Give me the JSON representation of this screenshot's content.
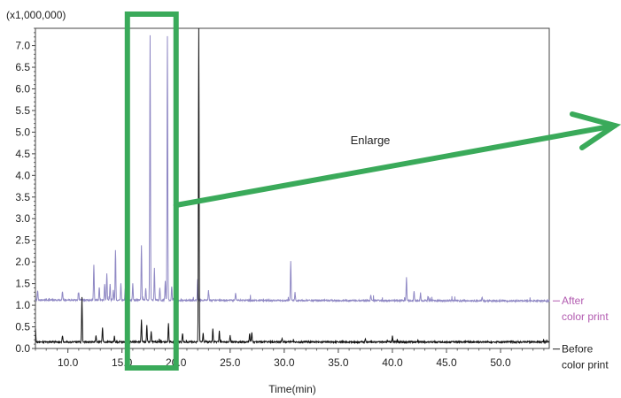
{
  "chart_data": {
    "type": "line",
    "title": "",
    "multiplier_label": "(x1,000,000)",
    "xlabel": "Time(min)",
    "ylabel": "",
    "xlim": [
      7.0,
      54.5
    ],
    "ylim": [
      0.0,
      7.4
    ],
    "x_ticks": [
      "10.0",
      "15.0",
      "20.0",
      "25.0",
      "30.0",
      "35.0",
      "40.0",
      "45.0",
      "50.0"
    ],
    "y_ticks": [
      "0.0",
      "0.5",
      "1.0",
      "1.5",
      "2.0",
      "2.5",
      "3.0",
      "3.5",
      "4.0",
      "4.5",
      "5.0",
      "5.5",
      "6.0",
      "6.5",
      "7.0"
    ],
    "series": [
      {
        "name": "After color print",
        "label_lines": [
          "After",
          "color print"
        ],
        "color": "#8f88c4",
        "label_color": "#b25bb0",
        "baseline": 1.12,
        "baseline_end": 1.1,
        "peaks": [
          [
            7.2,
            1.35
          ],
          [
            9.5,
            1.32
          ],
          [
            11.0,
            1.3
          ],
          [
            12.4,
            1.93
          ],
          [
            12.9,
            1.42
          ],
          [
            13.4,
            1.5
          ],
          [
            13.6,
            1.75
          ],
          [
            13.9,
            1.5
          ],
          [
            14.2,
            1.35
          ],
          [
            14.4,
            2.28
          ],
          [
            14.9,
            1.5
          ],
          [
            15.3,
            1.38
          ],
          [
            16.0,
            1.5
          ],
          [
            16.8,
            2.4
          ],
          [
            17.2,
            1.38
          ],
          [
            17.6,
            7.25
          ],
          [
            18.0,
            1.85
          ],
          [
            18.5,
            1.42
          ],
          [
            19.0,
            1.55
          ],
          [
            19.2,
            7.22
          ],
          [
            19.6,
            1.45
          ],
          [
            20.0,
            1.6
          ],
          [
            22.0,
            1.6
          ],
          [
            23.0,
            1.35
          ],
          [
            25.5,
            1.3
          ],
          [
            30.6,
            2.02
          ],
          [
            31.0,
            1.3
          ],
          [
            38.0,
            1.25
          ],
          [
            41.3,
            1.65
          ],
          [
            42.0,
            1.35
          ],
          [
            42.6,
            1.3
          ],
          [
            43.3,
            1.22
          ],
          [
            48.3,
            1.2
          ]
        ]
      },
      {
        "name": "Before color print",
        "label_lines": [
          "Before",
          "color print"
        ],
        "color": "#111111",
        "label_color": "#222222",
        "baseline": 0.15,
        "baseline_end": 0.15,
        "peaks": [
          [
            7.0,
            0.45
          ],
          [
            9.5,
            0.3
          ],
          [
            11.3,
            1.18
          ],
          [
            12.6,
            0.3
          ],
          [
            13.2,
            0.48
          ],
          [
            14.3,
            0.28
          ],
          [
            16.8,
            0.65
          ],
          [
            17.3,
            0.55
          ],
          [
            17.7,
            0.4
          ],
          [
            19.3,
            0.6
          ],
          [
            20.0,
            0.78
          ],
          [
            20.6,
            0.35
          ],
          [
            22.1,
            7.4
          ],
          [
            22.5,
            0.35
          ],
          [
            23.4,
            0.45
          ],
          [
            24.0,
            0.4
          ],
          [
            25.0,
            0.3
          ],
          [
            26.8,
            0.35
          ],
          [
            27.0,
            0.38
          ],
          [
            29.8,
            0.25
          ],
          [
            37.5,
            0.22
          ],
          [
            40.0,
            0.28
          ]
        ]
      }
    ],
    "annotation": {
      "text": "Enlarge",
      "highlight_x_range": [
        15.5,
        20.0
      ],
      "color": "#3aaa5a"
    }
  }
}
